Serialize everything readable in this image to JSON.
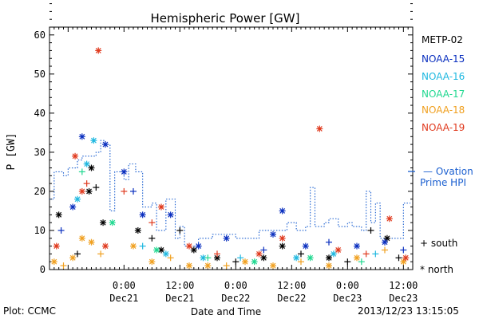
{
  "chart_data": {
    "type": "scatter",
    "title": "Hemispheric Power [GW]",
    "xlabel": "Date and Time",
    "ylabel": "P [GW]",
    "ylim": [
      0,
      62
    ],
    "y_ticks": [
      0,
      10,
      20,
      30,
      40,
      50,
      60
    ],
    "xlim": [
      "2013-12-20 08:00",
      "2013-12-23 14:00"
    ],
    "x_ticks": [
      {
        "time": "2013-12-21 00:00",
        "line1": "0:00",
        "line2": "Dec21"
      },
      {
        "time": "2013-12-21 12:00",
        "line1": "12:00",
        "line2": "Dec21"
      },
      {
        "time": "2013-12-22 00:00",
        "line1": "0:00",
        "line2": "Dec22"
      },
      {
        "time": "2013-12-22 12:00",
        "line1": "12:00",
        "line2": "Dec22"
      },
      {
        "time": "2013-12-23 00:00",
        "line1": "0:00",
        "line2": "Dec23"
      },
      {
        "time": "2013-12-23 12:00",
        "line1": "12:00",
        "line2": "Dec23"
      }
    ],
    "legend": {
      "satellites": [
        {
          "name": "METP-02",
          "color": "#000000"
        },
        {
          "name": "NOAA-15",
          "color": "#0a2fbf"
        },
        {
          "name": "NOAA-16",
          "color": "#1fb8e0"
        },
        {
          "name": "NOAA-17",
          "color": "#20d890"
        },
        {
          "name": "NOAA-18",
          "color": "#f0a020"
        },
        {
          "name": "NOAA-19",
          "color": "#e03a1e"
        }
      ],
      "ovation_label_1": "— Ovation",
      "ovation_label_2": "Prime HPI",
      "ovation_color": "#1a5fd0",
      "south_label": "+ south",
      "north_label": "* north"
    },
    "series": [
      {
        "name": "METP-02",
        "color": "#000000",
        "points": [
          {
            "t": "2013-12-20 10:00",
            "p": 14,
            "h": "N"
          },
          {
            "t": "2013-12-20 14:00",
            "p": 4,
            "h": "S"
          },
          {
            "t": "2013-12-20 16:30",
            "p": 20,
            "h": "N"
          },
          {
            "t": "2013-12-20 17:00",
            "p": 26,
            "h": "N"
          },
          {
            "t": "2013-12-20 18:00",
            "p": 21,
            "h": "S"
          },
          {
            "t": "2013-12-20 19:30",
            "p": 12,
            "h": "N"
          },
          {
            "t": "2013-12-21 03:00",
            "p": 10,
            "h": "N"
          },
          {
            "t": "2013-12-21 06:00",
            "p": 8,
            "h": "S"
          },
          {
            "t": "2013-12-21 08:00",
            "p": 5,
            "h": "N"
          },
          {
            "t": "2013-12-21 12:00",
            "p": 10,
            "h": "S"
          },
          {
            "t": "2013-12-21 15:00",
            "p": 5,
            "h": "N"
          },
          {
            "t": "2013-12-21 20:00",
            "p": 3,
            "h": "N"
          },
          {
            "t": "2013-12-22 00:00",
            "p": 2,
            "h": "S"
          },
          {
            "t": "2013-12-22 06:00",
            "p": 3,
            "h": "N"
          },
          {
            "t": "2013-12-22 10:00",
            "p": 6,
            "h": "N"
          },
          {
            "t": "2013-12-22 14:00",
            "p": 4,
            "h": "S"
          },
          {
            "t": "2013-12-22 20:00",
            "p": 3,
            "h": "N"
          },
          {
            "t": "2013-12-23 00:00",
            "p": 2,
            "h": "S"
          },
          {
            "t": "2013-12-23 05:00",
            "p": 10,
            "h": "S"
          },
          {
            "t": "2013-12-23 08:30",
            "p": 8,
            "h": "N"
          },
          {
            "t": "2013-12-23 11:00",
            "p": 3,
            "h": "S"
          }
        ]
      },
      {
        "name": "NOAA-15",
        "color": "#0a2fbf",
        "points": [
          {
            "t": "2013-12-20 10:30",
            "p": 10,
            "h": "S"
          },
          {
            "t": "2013-12-20 13:00",
            "p": 16,
            "h": "N"
          },
          {
            "t": "2013-12-20 15:00",
            "p": 34,
            "h": "N"
          },
          {
            "t": "2013-12-20 20:00",
            "p": 32,
            "h": "N"
          },
          {
            "t": "2013-12-21 00:00",
            "p": 25,
            "h": "N"
          },
          {
            "t": "2013-12-21 02:00",
            "p": 20,
            "h": "S"
          },
          {
            "t": "2013-12-21 04:00",
            "p": 14,
            "h": "N"
          },
          {
            "t": "2013-12-21 10:00",
            "p": 14,
            "h": "N"
          },
          {
            "t": "2013-12-21 16:00",
            "p": 6,
            "h": "N"
          },
          {
            "t": "2013-12-21 22:00",
            "p": 8,
            "h": "N"
          },
          {
            "t": "2013-12-22 06:00",
            "p": 5,
            "h": "S"
          },
          {
            "t": "2013-12-22 08:00",
            "p": 9,
            "h": "N"
          },
          {
            "t": "2013-12-22 10:00",
            "p": 15,
            "h": "N"
          },
          {
            "t": "2013-12-22 15:00",
            "p": 6,
            "h": "N"
          },
          {
            "t": "2013-12-22 20:00",
            "p": 7,
            "h": "S"
          },
          {
            "t": "2013-12-23 02:00",
            "p": 6,
            "h": "N"
          },
          {
            "t": "2013-12-23 08:00",
            "p": 7,
            "h": "N"
          },
          {
            "t": "2013-12-23 12:00",
            "p": 5,
            "h": "S"
          }
        ]
      },
      {
        "name": "NOAA-16",
        "color": "#1fb8e0",
        "points": [
          {
            "t": "2013-12-20 14:00",
            "p": 18,
            "h": "N"
          },
          {
            "t": "2013-12-20 17:30",
            "p": 33,
            "h": "N"
          },
          {
            "t": "2013-12-20 16:00",
            "p": 27,
            "h": "N"
          },
          {
            "t": "2013-12-21 04:00",
            "p": 6,
            "h": "S"
          },
          {
            "t": "2013-12-21 09:00",
            "p": 4,
            "h": "N"
          },
          {
            "t": "2013-12-21 17:00",
            "p": 3,
            "h": "N"
          },
          {
            "t": "2013-12-22 01:00",
            "p": 3,
            "h": "S"
          },
          {
            "t": "2013-12-22 13:00",
            "p": 3,
            "h": "N"
          },
          {
            "t": "2013-12-22 21:00",
            "p": 4,
            "h": "N"
          },
          {
            "t": "2013-12-23 06:00",
            "p": 4,
            "h": "S"
          }
        ]
      },
      {
        "name": "NOAA-17",
        "color": "#20d890",
        "points": [
          {
            "t": "2013-12-20 15:00",
            "p": 25,
            "h": "S"
          },
          {
            "t": "2013-12-20 21:30",
            "p": 12,
            "h": "N"
          },
          {
            "t": "2013-12-21 07:00",
            "p": 5,
            "h": "N"
          },
          {
            "t": "2013-12-21 18:00",
            "p": 3,
            "h": "S"
          },
          {
            "t": "2013-12-22 04:00",
            "p": 2,
            "h": "N"
          },
          {
            "t": "2013-12-22 16:00",
            "p": 3,
            "h": "N"
          },
          {
            "t": "2013-12-23 03:00",
            "p": 2,
            "h": "S"
          }
        ]
      },
      {
        "name": "NOAA-18",
        "color": "#f0a020",
        "points": [
          {
            "t": "2013-12-20 09:00",
            "p": 2,
            "h": "N"
          },
          {
            "t": "2013-12-20 11:00",
            "p": 1,
            "h": "S"
          },
          {
            "t": "2013-12-20 13:00",
            "p": 3,
            "h": "N"
          },
          {
            "t": "2013-12-20 15:00",
            "p": 8,
            "h": "N"
          },
          {
            "t": "2013-12-20 17:00",
            "p": 7,
            "h": "N"
          },
          {
            "t": "2013-12-20 19:00",
            "p": 4,
            "h": "S"
          },
          {
            "t": "2013-12-21 02:00",
            "p": 6,
            "h": "N"
          },
          {
            "t": "2013-12-21 06:00",
            "p": 2,
            "h": "N"
          },
          {
            "t": "2013-12-21 10:00",
            "p": 3,
            "h": "S"
          },
          {
            "t": "2013-12-21 14:00",
            "p": 1,
            "h": "N"
          },
          {
            "t": "2013-12-21 18:00",
            "p": 1,
            "h": "N"
          },
          {
            "t": "2013-12-21 22:00",
            "p": 1,
            "h": "S"
          },
          {
            "t": "2013-12-22 02:00",
            "p": 2,
            "h": "N"
          },
          {
            "t": "2013-12-22 08:00",
            "p": 1,
            "h": "N"
          },
          {
            "t": "2013-12-22 14:00",
            "p": 2,
            "h": "S"
          },
          {
            "t": "2013-12-22 20:00",
            "p": 1,
            "h": "N"
          },
          {
            "t": "2013-12-23 02:00",
            "p": 3,
            "h": "N"
          },
          {
            "t": "2013-12-23 08:00",
            "p": 5,
            "h": "S"
          },
          {
            "t": "2013-12-23 12:00",
            "p": 2,
            "h": "N"
          }
        ]
      },
      {
        "name": "NOAA-19",
        "color": "#e03a1e",
        "points": [
          {
            "t": "2013-12-20 09:30",
            "p": 6,
            "h": "N"
          },
          {
            "t": "2013-12-20 13:30",
            "p": 29,
            "h": "N"
          },
          {
            "t": "2013-12-20 15:00",
            "p": 20,
            "h": "N"
          },
          {
            "t": "2013-12-20 16:00",
            "p": 22,
            "h": "S"
          },
          {
            "t": "2013-12-20 18:30",
            "p": 56,
            "h": "N"
          },
          {
            "t": "2013-12-20 20:00",
            "p": 6,
            "h": "N"
          },
          {
            "t": "2013-12-21 00:00",
            "p": 20,
            "h": "S"
          },
          {
            "t": "2013-12-21 06:00",
            "p": 12,
            "h": "S"
          },
          {
            "t": "2013-12-21 08:00",
            "p": 16,
            "h": "N"
          },
          {
            "t": "2013-12-21 14:00",
            "p": 6,
            "h": "N"
          },
          {
            "t": "2013-12-21 20:00",
            "p": 4,
            "h": "S"
          },
          {
            "t": "2013-12-22 05:00",
            "p": 4,
            "h": "N"
          },
          {
            "t": "2013-12-22 10:00",
            "p": 8,
            "h": "N"
          },
          {
            "t": "2013-12-22 18:00",
            "p": 36,
            "h": "N"
          },
          {
            "t": "2013-12-22 22:00",
            "p": 5,
            "h": "N"
          },
          {
            "t": "2013-12-23 04:00",
            "p": 4,
            "h": "S"
          },
          {
            "t": "2013-12-23 09:00",
            "p": 13,
            "h": "N"
          },
          {
            "t": "2013-12-23 12:30",
            "p": 3,
            "h": "N"
          }
        ]
      }
    ],
    "ovation_prime_hpi": [
      {
        "t": "2013-12-20 08:00",
        "p": 18
      },
      {
        "t": "2013-12-20 09:00",
        "p": 25
      },
      {
        "t": "2013-12-20 11:00",
        "p": 24
      },
      {
        "t": "2013-12-20 12:00",
        "p": 26
      },
      {
        "t": "2013-12-20 14:00",
        "p": 28
      },
      {
        "t": "2013-12-20 15:00",
        "p": 29
      },
      {
        "t": "2013-12-20 17:00",
        "p": 29
      },
      {
        "t": "2013-12-20 18:00",
        "p": 30
      },
      {
        "t": "2013-12-20 19:00",
        "p": 33
      },
      {
        "t": "2013-12-20 20:00",
        "p": 32
      },
      {
        "t": "2013-12-20 21:00",
        "p": 15
      },
      {
        "t": "2013-12-20 22:00",
        "p": 25
      },
      {
        "t": "2013-12-21 00:00",
        "p": 23
      },
      {
        "t": "2013-12-21 01:00",
        "p": 27
      },
      {
        "t": "2013-12-21 02:30",
        "p": 25
      },
      {
        "t": "2013-12-21 04:00",
        "p": 16
      },
      {
        "t": "2013-12-21 06:00",
        "p": 17
      },
      {
        "t": "2013-12-21 07:00",
        "p": 10
      },
      {
        "t": "2013-12-21 09:00",
        "p": 18
      },
      {
        "t": "2013-12-21 11:00",
        "p": 8
      },
      {
        "t": "2013-12-21 12:00",
        "p": 11
      },
      {
        "t": "2013-12-21 13:00",
        "p": 6
      },
      {
        "t": "2013-12-21 16:00",
        "p": 8
      },
      {
        "t": "2013-12-21 17:30",
        "p": 8
      },
      {
        "t": "2013-12-21 19:00",
        "p": 9
      },
      {
        "t": "2013-12-21 22:00",
        "p": 9
      },
      {
        "t": "2013-12-22 00:00",
        "p": 8
      },
      {
        "t": "2013-12-22 03:00",
        "p": 8
      },
      {
        "t": "2013-12-22 05:00",
        "p": 10
      },
      {
        "t": "2013-12-22 07:00",
        "p": 10
      },
      {
        "t": "2013-12-22 09:00",
        "p": 10
      },
      {
        "t": "2013-12-22 11:00",
        "p": 12
      },
      {
        "t": "2013-12-22 13:00",
        "p": 10
      },
      {
        "t": "2013-12-22 15:00",
        "p": 11
      },
      {
        "t": "2013-12-22 16:00",
        "p": 21
      },
      {
        "t": "2013-12-22 17:00",
        "p": 11
      },
      {
        "t": "2013-12-22 19:00",
        "p": 12
      },
      {
        "t": "2013-12-22 20:00",
        "p": 13
      },
      {
        "t": "2013-12-22 22:00",
        "p": 11
      },
      {
        "t": "2013-12-23 00:00",
        "p": 12
      },
      {
        "t": "2013-12-23 01:00",
        "p": 11
      },
      {
        "t": "2013-12-23 03:00",
        "p": 10
      },
      {
        "t": "2013-12-23 04:00",
        "p": 20
      },
      {
        "t": "2013-12-23 05:00",
        "p": 12
      },
      {
        "t": "2013-12-23 06:00",
        "p": 17
      },
      {
        "t": "2013-12-23 07:00",
        "p": 8
      },
      {
        "t": "2013-12-23 09:00",
        "p": 8
      },
      {
        "t": "2013-12-23 11:00",
        "p": 8
      },
      {
        "t": "2013-12-23 12:00",
        "p": 17
      },
      {
        "t": "2013-12-23 13:30",
        "p": 17
      }
    ]
  },
  "footer": {
    "plot_credit": "Plot: CCMC",
    "timestamp": "2013/12/23 13:15:05"
  }
}
